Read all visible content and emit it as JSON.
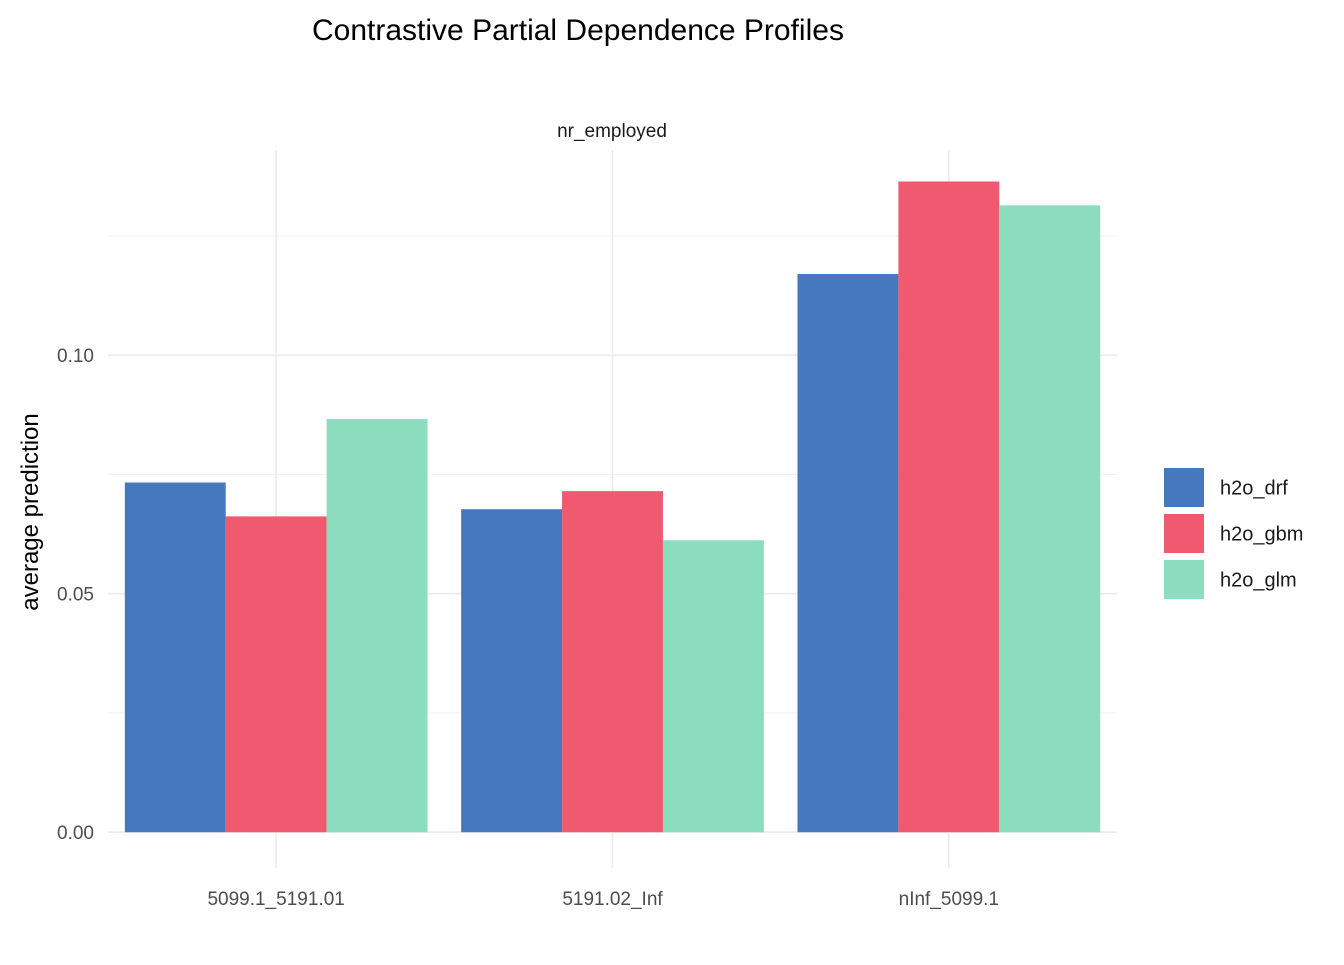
{
  "chart_data": {
    "type": "bar",
    "title": "Contrastive Partial Dependence Profiles",
    "facet_label": "nr_employed",
    "xlabel": "",
    "ylabel": "average prediction",
    "categories": [
      "5099.1_5191.01",
      "5191.02_Inf",
      "nInf_5099.1"
    ],
    "series": [
      {
        "name": "h2o_drf",
        "color": "#4678BE",
        "values": [
          0.0733,
          0.0677,
          0.117
        ]
      },
      {
        "name": "h2o_gbm",
        "color": "#EF5A70",
        "values": [
          0.0662,
          0.0715,
          0.1364
        ]
      },
      {
        "name": "h2o_glm",
        "color": "#8CDCBE",
        "values": [
          0.0866,
          0.0612,
          0.1314
        ]
      }
    ],
    "ylim": [
      -0.0075,
      0.143
    ],
    "yticks": [
      0.0,
      0.05,
      0.1
    ],
    "ytick_labels": [
      "0.00",
      "0.05",
      "0.10"
    ],
    "yminor": [
      0.025,
      0.075,
      0.125
    ],
    "grid": true,
    "legend": "right"
  }
}
